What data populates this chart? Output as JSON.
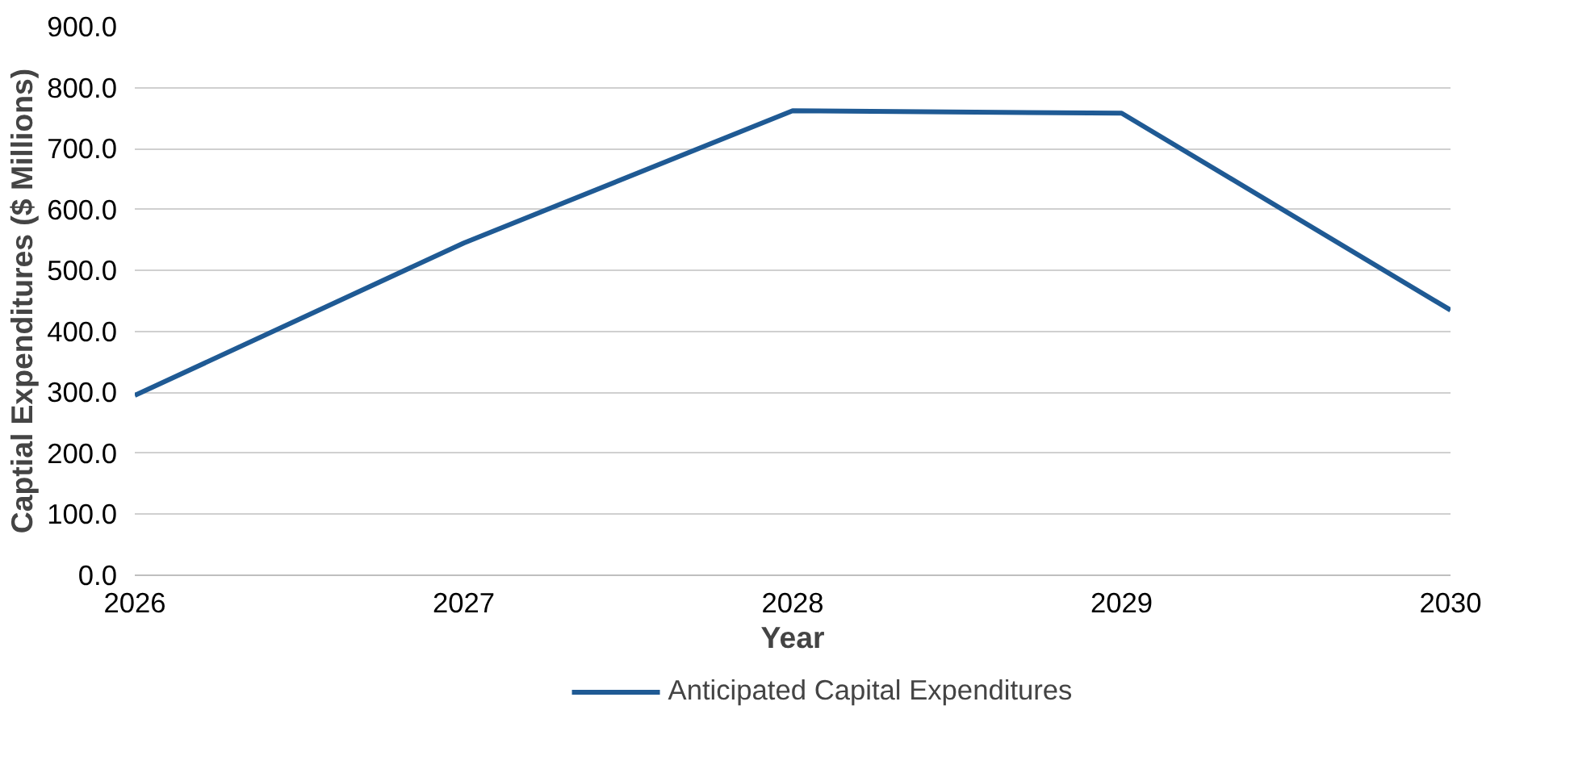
{
  "chart_data": {
    "type": "line",
    "xlabel": "Year",
    "ylabel": "Captial Expenditures ($ Millions)",
    "x": [
      2026,
      2027,
      2028,
      2029,
      2030
    ],
    "series": [
      {
        "name": "Anticipated Capital Expenditures",
        "color": "#1f5a94",
        "values": [
          295,
          545,
          762,
          758,
          435
        ]
      }
    ],
    "xlim": [
      2026,
      2030
    ],
    "xticks": [
      2026,
      2027,
      2028,
      2029,
      2030
    ],
    "ylim": [
      0,
      900
    ],
    "yticks": [
      {
        "value": 0,
        "label": "0.0"
      },
      {
        "value": 100,
        "label": "100.0"
      },
      {
        "value": 200,
        "label": "200.0"
      },
      {
        "value": 300,
        "label": "300.0"
      },
      {
        "value": 400,
        "label": "400.0"
      },
      {
        "value": 500,
        "label": "500.0"
      },
      {
        "value": 600,
        "label": "600.0"
      },
      {
        "value": 700,
        "label": "700.0"
      },
      {
        "value": 800,
        "label": "800.0"
      },
      {
        "value": 900,
        "label": "900.0"
      }
    ],
    "grid": "y",
    "legend": "bottom",
    "marker": "none",
    "line_style": "solid"
  }
}
